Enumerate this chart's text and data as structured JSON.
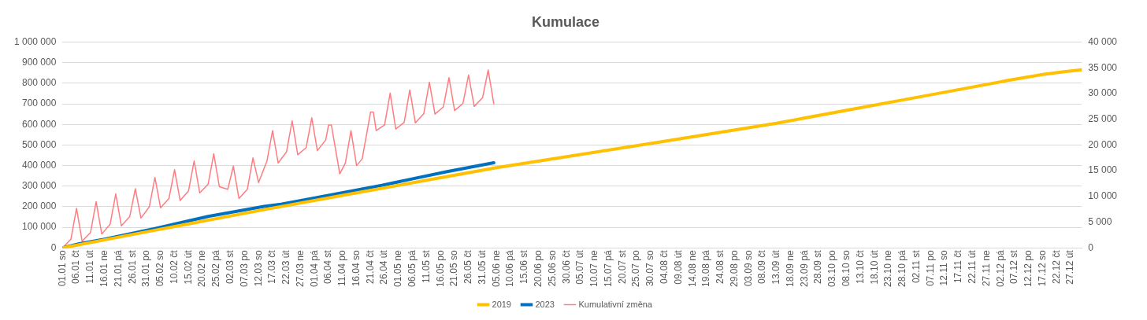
{
  "chart_data": {
    "type": "line",
    "title": "Kumulace",
    "legend": "bottom",
    "grid": "y",
    "xlim": [
      "--01-01",
      "--12-31"
    ],
    "xticks": [
      {
        "value": "--01-01",
        "label": "01.01 so"
      },
      {
        "value": "--01-06",
        "label": "06.01 čt"
      },
      {
        "value": "--01-11",
        "label": "11.01 út"
      },
      {
        "value": "--01-16",
        "label": "16.01 ne"
      },
      {
        "value": "--01-21",
        "label": "21.01 pá"
      },
      {
        "value": "--01-26",
        "label": "26.01 st"
      },
      {
        "value": "--01-31",
        "label": "31.01 po"
      },
      {
        "value": "--02-05",
        "label": "05.02 so"
      },
      {
        "value": "--02-10",
        "label": "10.02 čt"
      },
      {
        "value": "--02-15",
        "label": "15.02 út"
      },
      {
        "value": "--02-20",
        "label": "20.02 ne"
      },
      {
        "value": "--02-25",
        "label": "25.02 pá"
      },
      {
        "value": "--03-02",
        "label": "02.03 st"
      },
      {
        "value": "--03-07",
        "label": "07.03 po"
      },
      {
        "value": "--03-12",
        "label": "12.03 so"
      },
      {
        "value": "--03-17",
        "label": "17.03 čt"
      },
      {
        "value": "--03-22",
        "label": "22.03 út"
      },
      {
        "value": "--03-27",
        "label": "27.03 ne"
      },
      {
        "value": "--04-01",
        "label": "01.04 pá"
      },
      {
        "value": "--04-06",
        "label": "06.04 st"
      },
      {
        "value": "--04-11",
        "label": "11.04 po"
      },
      {
        "value": "--04-16",
        "label": "16.04 so"
      },
      {
        "value": "--04-21",
        "label": "21.04 čt"
      },
      {
        "value": "--04-26",
        "label": "26.04 út"
      },
      {
        "value": "--05-01",
        "label": "01.05 ne"
      },
      {
        "value": "--05-06",
        "label": "06.05 pá"
      },
      {
        "value": "--05-11",
        "label": "11.05 st"
      },
      {
        "value": "--05-16",
        "label": "16.05 po"
      },
      {
        "value": "--05-21",
        "label": "21.05 so"
      },
      {
        "value": "--05-26",
        "label": "26.05 čt"
      },
      {
        "value": "--05-31",
        "label": "31.05 út"
      },
      {
        "value": "--06-05",
        "label": "05.06 ne"
      },
      {
        "value": "--06-10",
        "label": "10.06 pá"
      },
      {
        "value": "--06-15",
        "label": "15.06 st"
      },
      {
        "value": "--06-20",
        "label": "20.06 po"
      },
      {
        "value": "--06-25",
        "label": "25.06 so"
      },
      {
        "value": "--06-30",
        "label": "30.06 čt"
      },
      {
        "value": "--07-05",
        "label": "05.07 út"
      },
      {
        "value": "--07-10",
        "label": "10.07 ne"
      },
      {
        "value": "--07-15",
        "label": "15.07 pá"
      },
      {
        "value": "--07-20",
        "label": "20.07 st"
      },
      {
        "value": "--07-25",
        "label": "25.07 po"
      },
      {
        "value": "--07-30",
        "label": "30.07 so"
      },
      {
        "value": "--08-04",
        "label": "04.08 čt"
      },
      {
        "value": "--08-09",
        "label": "09.08 út"
      },
      {
        "value": "--08-14",
        "label": "14.08 ne"
      },
      {
        "value": "--08-19",
        "label": "19.08 pá"
      },
      {
        "value": "--08-24",
        "label": "24.08 st"
      },
      {
        "value": "--08-29",
        "label": "29.08 po"
      },
      {
        "value": "--09-03",
        "label": "03.09 so"
      },
      {
        "value": "--09-08",
        "label": "08.09 čt"
      },
      {
        "value": "--09-13",
        "label": "13.09 út"
      },
      {
        "value": "--09-18",
        "label": "18.09 ne"
      },
      {
        "value": "--09-23",
        "label": "23.09 pá"
      },
      {
        "value": "--09-28",
        "label": "28.09 st"
      },
      {
        "value": "--10-03",
        "label": "03.10 po"
      },
      {
        "value": "--10-08",
        "label": "08.10 so"
      },
      {
        "value": "--10-13",
        "label": "13.10 čt"
      },
      {
        "value": "--10-18",
        "label": "18.10 út"
      },
      {
        "value": "--10-23",
        "label": "23.10 ne"
      },
      {
        "value": "--10-28",
        "label": "28.10 pá"
      },
      {
        "value": "--11-02",
        "label": "02.11 st"
      },
      {
        "value": "--11-07",
        "label": "07.11 po"
      },
      {
        "value": "--11-12",
        "label": "12.11 so"
      },
      {
        "value": "--11-17",
        "label": "17.11 čt"
      },
      {
        "value": "--11-22",
        "label": "22.11 út"
      },
      {
        "value": "--11-27",
        "label": "27.11 ne"
      },
      {
        "value": "--12-02",
        "label": "02.12 pá"
      },
      {
        "value": "--12-07",
        "label": "07.12 st"
      },
      {
        "value": "--12-12",
        "label": "12.12 po"
      },
      {
        "value": "--12-17",
        "label": "17.12 so"
      },
      {
        "value": "--12-22",
        "label": "22.12 čt"
      },
      {
        "value": "--12-27",
        "label": "27.12 út"
      }
    ],
    "ylim": [
      0,
      1000000
    ],
    "yticks": [
      {
        "value": 0,
        "label": "0"
      },
      {
        "value": 100000,
        "label": "100 000"
      },
      {
        "value": 200000,
        "label": "200 000"
      },
      {
        "value": 300000,
        "label": "300 000"
      },
      {
        "value": 400000,
        "label": "400 000"
      },
      {
        "value": 500000,
        "label": "500 000"
      },
      {
        "value": 600000,
        "label": "600 000"
      },
      {
        "value": 700000,
        "label": "700 000"
      },
      {
        "value": 800000,
        "label": "800 000"
      },
      {
        "value": 900000,
        "label": "900 000"
      },
      {
        "value": 1000000,
        "label": "1 000 000"
      }
    ],
    "y2lim": [
      0,
      40000
    ],
    "y2ticks": [
      {
        "value": 0,
        "label": "0"
      },
      {
        "value": 5000,
        "label": "5 000"
      },
      {
        "value": 10000,
        "label": "10 000"
      },
      {
        "value": 15000,
        "label": "15 000"
      },
      {
        "value": 20000,
        "label": "20 000"
      },
      {
        "value": 25000,
        "label": "25 000"
      },
      {
        "value": 30000,
        "label": "30 000"
      },
      {
        "value": 35000,
        "label": "35 000"
      },
      {
        "value": 40000,
        "label": "40 000"
      }
    ],
    "series": [
      {
        "name": "2019",
        "color": "#ffc000",
        "x": [
          "--01-01",
          "--01-31",
          "--03-14",
          "--04-11",
          "--05-11",
          "--06-05",
          "--07-05",
          "--08-03",
          "--09-13",
          "--10-08",
          "--11-07",
          "--12-05",
          "--12-17",
          "--12-24",
          "--12-31"
        ],
        "values": [
          0,
          78000,
          186000,
          255000,
          329000,
          390000,
          454000,
          516000,
          606000,
          669000,
          744000,
          815000,
          843000,
          855000,
          866000
        ]
      },
      {
        "name": "2023",
        "color": "#0070c0",
        "x": [
          "--01-01",
          "--01-07",
          "--01-16",
          "--02-03",
          "--02-22",
          "--03-14",
          "--03-20",
          "--04-25",
          "--05-18",
          "--06-04"
        ],
        "values": [
          0,
          20000,
          42000,
          94000,
          153000,
          202000,
          212000,
          304000,
          370000,
          414000
        ]
      },
      {
        "name": "Kumulativní změna",
        "color": "#ff7c80",
        "axis": "y2",
        "x": [
          "--01-01",
          "--01-04",
          "--01-06",
          "--01-08",
          "--01-11",
          "--01-13",
          "--01-15",
          "--01-18",
          "--01-20",
          "--01-22",
          "--01-25",
          "--01-27",
          "--01-29",
          "--02-01",
          "--02-03",
          "--02-05",
          "--02-08",
          "--02-10",
          "--02-12",
          "--02-15",
          "--02-17",
          "--02-19",
          "--02-22",
          "--02-24",
          "--02-26",
          "--03-01",
          "--03-03",
          "--03-05",
          "--03-08",
          "--03-10",
          "--03-12",
          "--03-15",
          "--03-17",
          "--03-19",
          "--03-22",
          "--03-24",
          "--03-26",
          "--03-29",
          "--03-31",
          "--04-02",
          "--04-05",
          "--04-06",
          "--04-07",
          "--04-10",
          "--04-12",
          "--04-14",
          "--04-16",
          "--04-18",
          "--04-21",
          "--04-22",
          "--04-23",
          "--04-26",
          "--04-28",
          "--04-30",
          "--05-03",
          "--05-05",
          "--05-07",
          "--05-10",
          "--05-12",
          "--05-14",
          "--05-17",
          "--05-19",
          "--05-21",
          "--05-24",
          "--05-26",
          "--05-28",
          "--05-31",
          "--06-02",
          "--06-04"
        ],
        "values": [
          0,
          1700,
          7700,
          1300,
          3000,
          9000,
          2700,
          4600,
          10500,
          4300,
          6100,
          11500,
          5800,
          8000,
          13700,
          7800,
          9600,
          15200,
          9200,
          11100,
          16900,
          10700,
          12400,
          18300,
          11900,
          11400,
          15900,
          9600,
          11400,
          17500,
          12700,
          16900,
          22800,
          16500,
          18700,
          24700,
          18100,
          19500,
          25300,
          18900,
          21000,
          23900,
          23900,
          14400,
          16500,
          22800,
          16000,
          17300,
          26400,
          26400,
          22800,
          23900,
          30100,
          23100,
          24400,
          30700,
          24300,
          26100,
          32200,
          26000,
          27400,
          33100,
          26700,
          28100,
          33600,
          27500,
          29200,
          34600,
          28000
        ]
      }
    ]
  }
}
